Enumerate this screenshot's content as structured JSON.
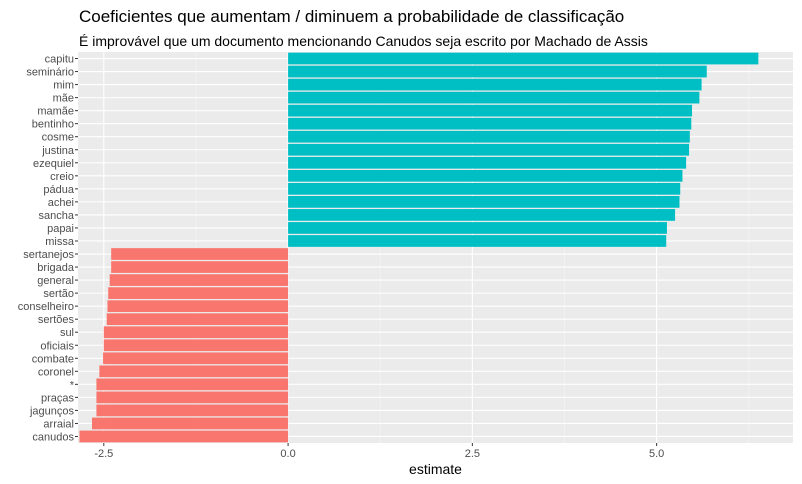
{
  "title": "Coeficientes que aumentam / diminuem a probabilidade de classificação",
  "subtitle": "É improvável que um documento mencionando Canudos seja escrito por Machado de Assis",
  "colors": {
    "panel": "#ebebeb",
    "grid_major": "#ffffff",
    "grid_minor": "#f5f5f5",
    "positive": "#00bfc4",
    "negative": "#f8766d"
  },
  "chart_data": {
    "type": "bar",
    "orientation": "horizontal",
    "title": "Coeficientes que aumentam / diminuem a probabilidade de classificação",
    "subtitle": "É improvável que um documento mencionando Canudos seja escrito por Machado de Assis",
    "xlabel": "estimate",
    "ylabel": "",
    "xlim": [
      -2.85,
      6.85
    ],
    "xticks": [
      -2.5,
      0.0,
      2.5,
      5.0
    ],
    "xtick_labels": [
      "-2.5",
      "0.0",
      "2.5",
      "5.0"
    ],
    "grid": true,
    "legend": "none",
    "categories": [
      "capitu",
      "seminário",
      "mim",
      "mãe",
      "mamãe",
      "bentinho",
      "cosme",
      "justina",
      "ezequiel",
      "creio",
      "pádua",
      "achei",
      "sancha",
      "papai",
      "missa",
      "sertanejos",
      "brigada",
      "general",
      "sertão",
      "conselheiro",
      "sertões",
      "sul",
      "oficiais",
      "combate",
      "coronel",
      "*",
      "praças",
      "jagunços",
      "arraial",
      "canudos"
    ],
    "values": [
      6.38,
      5.68,
      5.61,
      5.58,
      5.48,
      5.47,
      5.45,
      5.44,
      5.4,
      5.35,
      5.32,
      5.31,
      5.25,
      5.14,
      5.13,
      -2.4,
      -2.4,
      -2.42,
      -2.44,
      -2.45,
      -2.46,
      -2.5,
      -2.5,
      -2.51,
      -2.56,
      -2.6,
      -2.6,
      -2.6,
      -2.66,
      -2.83
    ]
  }
}
